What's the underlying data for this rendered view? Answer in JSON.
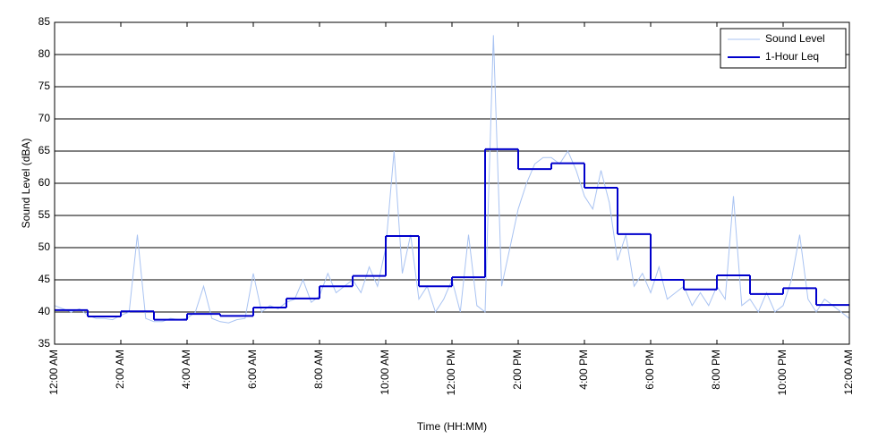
{
  "chart_data": {
    "type": "line",
    "xlabel": "Time (HH:MM)",
    "ylabel": "Sound Level (dBA)",
    "xlim": [
      0,
      24
    ],
    "ylim": [
      35,
      85
    ],
    "yticks": [
      35,
      40,
      45,
      50,
      55,
      60,
      65,
      70,
      75,
      80,
      85
    ],
    "xticks": [
      {
        "value": 0,
        "label": "12:00 AM"
      },
      {
        "value": 2,
        "label": "2:00 AM"
      },
      {
        "value": 4,
        "label": "4:00 AM"
      },
      {
        "value": 6,
        "label": "6:00 AM"
      },
      {
        "value": 8,
        "label": "8:00 AM"
      },
      {
        "value": 10,
        "label": "10:00 AM"
      },
      {
        "value": 12,
        "label": "12:00 PM"
      },
      {
        "value": 14,
        "label": "2:00 PM"
      },
      {
        "value": 16,
        "label": "4:00 PM"
      },
      {
        "value": 18,
        "label": "6:00 PM"
      },
      {
        "value": 20,
        "label": "8:00 PM"
      },
      {
        "value": 22,
        "label": "10:00 PM"
      },
      {
        "value": 24,
        "label": "12:00 AM"
      }
    ],
    "grid": "y",
    "legend": "upper right",
    "series": [
      {
        "name": "Sound Level",
        "color": "#a9c3f2",
        "x": [
          0,
          0.25,
          0.5,
          0.75,
          1,
          1.25,
          1.5,
          1.75,
          2,
          2.25,
          2.5,
          2.75,
          3,
          3.25,
          3.5,
          3.75,
          4,
          4.25,
          4.5,
          4.75,
          5,
          5.25,
          5.5,
          5.75,
          6,
          6.25,
          6.5,
          6.75,
          7,
          7.25,
          7.5,
          7.75,
          8,
          8.25,
          8.5,
          8.75,
          9,
          9.25,
          9.5,
          9.75,
          10,
          10.25,
          10.5,
          10.75,
          11,
          11.25,
          11.5,
          11.75,
          12,
          12.25,
          12.5,
          12.75,
          13,
          13.25,
          13.5,
          13.75,
          14,
          14.25,
          14.5,
          14.75,
          15,
          15.25,
          15.5,
          15.75,
          16,
          16.25,
          16.5,
          16.75,
          17,
          17.25,
          17.5,
          17.75,
          18,
          18.25,
          18.5,
          18.75,
          19,
          19.25,
          19.5,
          19.75,
          20,
          20.25,
          20.5,
          20.75,
          21,
          21.25,
          21.5,
          21.75,
          22,
          22.25,
          22.5,
          22.75,
          23,
          23.25,
          23.5,
          23.75,
          24
        ],
        "values": [
          41,
          40.5,
          40,
          40.5,
          39.5,
          39,
          39,
          38.8,
          39.5,
          40,
          52,
          39,
          38.5,
          38.5,
          39,
          38.8,
          39,
          40,
          44,
          39,
          38.5,
          38.3,
          38.8,
          39,
          46,
          40,
          41,
          40.5,
          41.5,
          42,
          45,
          41.5,
          42.5,
          46,
          43,
          44,
          45,
          43,
          47,
          44,
          50,
          65,
          46,
          52,
          42,
          44,
          40,
          42,
          45,
          40,
          52,
          41,
          40,
          83,
          44,
          50,
          56,
          60,
          63,
          64,
          64,
          63,
          65,
          62,
          58,
          56,
          62,
          57,
          48,
          52,
          44,
          46,
          43,
          47,
          42,
          43,
          44,
          41,
          43,
          41,
          44,
          42,
          58,
          41,
          42,
          40,
          43,
          40,
          41,
          45,
          52,
          42,
          40,
          42,
          41,
          40,
          39
        ]
      },
      {
        "name": "1-Hour Leq",
        "color": "#0000cc",
        "step": "post",
        "x": [
          0,
          1,
          2,
          3,
          4,
          5,
          6,
          7,
          8,
          9,
          10,
          11,
          12,
          13,
          14,
          15,
          16,
          17,
          18,
          19,
          20,
          21,
          22,
          23
        ],
        "values": [
          40.3,
          39.3,
          40.1,
          38.8,
          39.7,
          39.4,
          40.7,
          42.1,
          44.0,
          45.6,
          51.8,
          44.0,
          45.4,
          65.3,
          62.2,
          63.1,
          59.3,
          52.1,
          45.0,
          43.5,
          45.7,
          42.8,
          43.7,
          41.1
        ]
      }
    ]
  }
}
